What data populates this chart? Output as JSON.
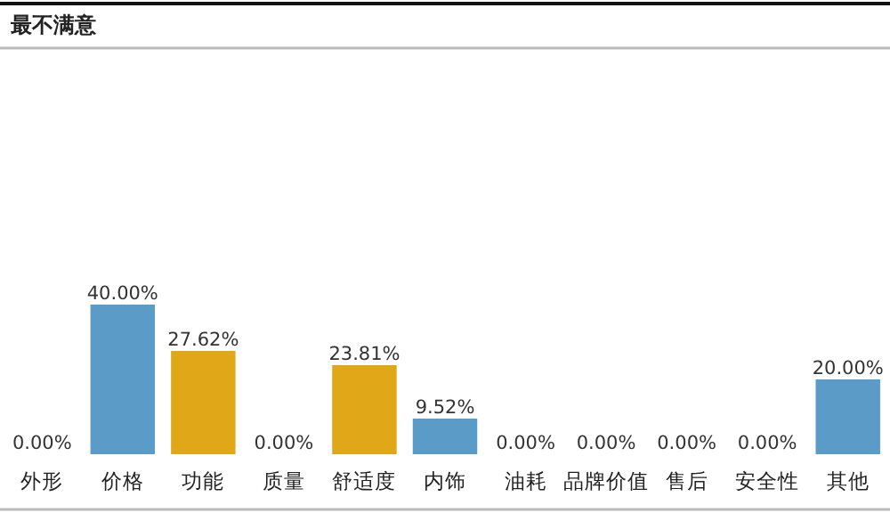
{
  "chart_data": {
    "type": "bar",
    "title": "最不满意",
    "categories": [
      "外形",
      "价格",
      "功能",
      "质量",
      "舒适度",
      "内饰",
      "油耗",
      "品牌价值",
      "售后",
      "安全性",
      "其他"
    ],
    "values": [
      0,
      40.0,
      27.62,
      0,
      23.81,
      9.52,
      0,
      0,
      0,
      0,
      20.0
    ],
    "value_labels": [
      "0.00%",
      "40.00%",
      "27.62%",
      "0.00%",
      "23.81%",
      "9.52%",
      "0.00%",
      "0.00%",
      "0.00%",
      "0.00%",
      "20.00%"
    ],
    "colors": [
      null,
      "#5b9bc8",
      "#e0a718",
      null,
      "#e0a718",
      "#5b9bc8",
      null,
      null,
      null,
      null,
      "#5b9bc8"
    ]
  }
}
